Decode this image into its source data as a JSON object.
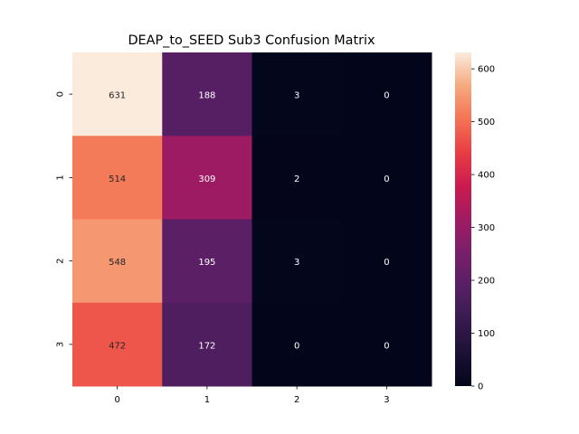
{
  "chart_data": {
    "type": "heatmap",
    "title": "DEAP_to_SEED Sub3 Confusion Matrix",
    "xlabel": "",
    "ylabel": "",
    "x_categories": [
      "0",
      "1",
      "2",
      "3"
    ],
    "y_categories": [
      "0",
      "1",
      "2",
      "3"
    ],
    "values": [
      [
        631,
        188,
        3,
        0
      ],
      [
        514,
        309,
        2,
        0
      ],
      [
        548,
        195,
        3,
        0
      ],
      [
        472,
        172,
        0,
        0
      ]
    ],
    "annotations": [
      [
        "631",
        "188",
        "3",
        "0"
      ],
      [
        "514",
        "309",
        "2",
        "0"
      ],
      [
        "548",
        "195",
        "3",
        "0"
      ],
      [
        "472",
        "172",
        "0",
        "0"
      ]
    ],
    "colormap": "rocket",
    "vmin": 0,
    "vmax": 631,
    "colorbar_ticks": [
      0,
      100,
      200,
      300,
      400,
      500,
      600
    ],
    "colorbar_tick_labels": [
      "0",
      "100",
      "200",
      "300",
      "400",
      "500",
      "600"
    ],
    "grid": false,
    "legend": "colorbar-right"
  }
}
